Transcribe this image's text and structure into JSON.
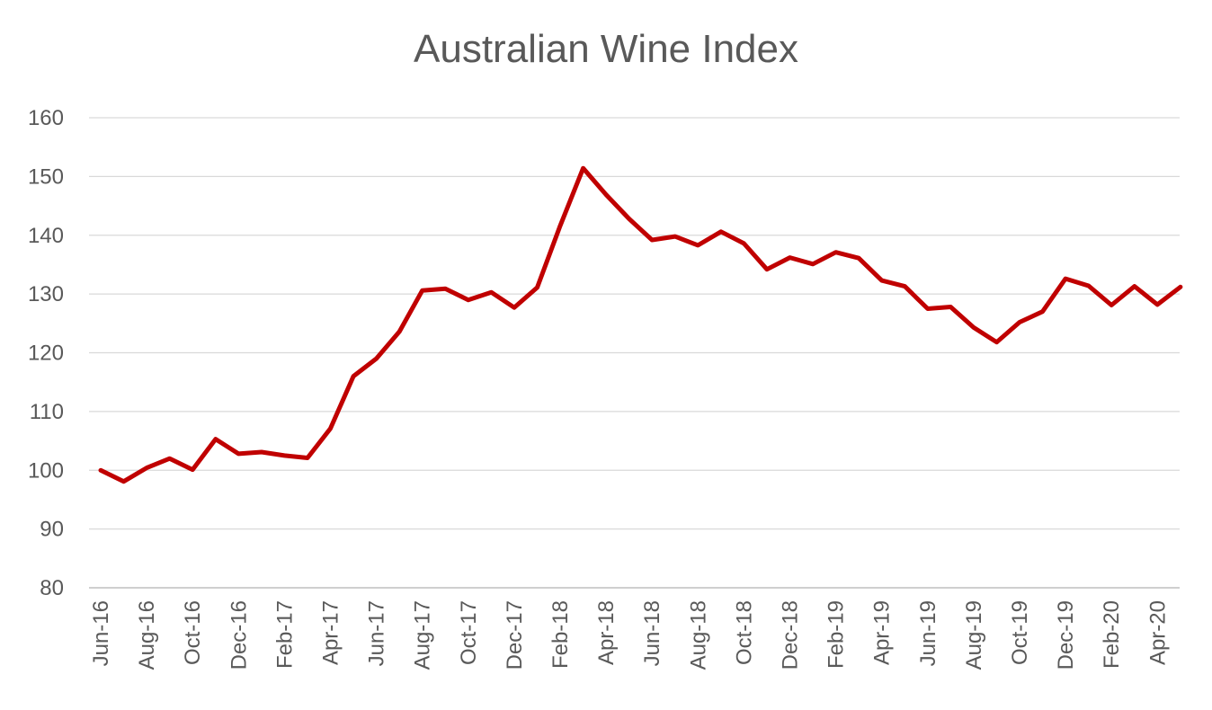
{
  "chart_data": {
    "type": "line",
    "title": "Australian Wine Index",
    "xlabel": "",
    "ylabel": "",
    "ylim": [
      80,
      160
    ],
    "yticks": [
      80,
      90,
      100,
      110,
      120,
      130,
      140,
      150,
      160
    ],
    "grid": true,
    "legend": "none",
    "x": [
      "Jun-16",
      "Jul-16",
      "Aug-16",
      "Sep-16",
      "Oct-16",
      "Nov-16",
      "Dec-16",
      "Jan-17",
      "Feb-17",
      "Mar-17",
      "Apr-17",
      "May-17",
      "Jun-17",
      "Jul-17",
      "Aug-17",
      "Sep-17",
      "Oct-17",
      "Nov-17",
      "Dec-17",
      "Jan-18",
      "Feb-18",
      "Mar-18",
      "Apr-18",
      "May-18",
      "Jun-18",
      "Jul-18",
      "Aug-18",
      "Sep-18",
      "Oct-18",
      "Nov-18",
      "Dec-18",
      "Jan-19",
      "Feb-19",
      "Mar-19",
      "Apr-19",
      "May-19",
      "Jun-19",
      "Jul-19",
      "Aug-19",
      "Sep-19",
      "Oct-19",
      "Nov-19",
      "Dec-19",
      "Jan-20",
      "Feb-20",
      "Mar-20",
      "Apr-20",
      "May-20"
    ],
    "xtick_labels": [
      "Jun-16",
      "Aug-16",
      "Oct-16",
      "Dec-16",
      "Feb-17",
      "Apr-17",
      "Jun-17",
      "Aug-17",
      "Oct-17",
      "Dec-17",
      "Feb-18",
      "Apr-18",
      "Jun-18",
      "Aug-18",
      "Oct-18",
      "Dec-18",
      "Feb-19",
      "Apr-19",
      "Jun-19",
      "Aug-19",
      "Oct-19",
      "Dec-19",
      "Feb-20",
      "Apr-20"
    ],
    "series": [
      {
        "color": "#c00000",
        "values": [
          100,
          98.1,
          100.4,
          102,
          100.1,
          105.3,
          102.8,
          103.1,
          102.5,
          102.1,
          107.1,
          116,
          119,
          123.6,
          130.6,
          130.9,
          129,
          130.3,
          127.7,
          131.1,
          141.6,
          151.4,
          146.9,
          142.8,
          139.2,
          139.8,
          138.3,
          140.6,
          138.6,
          134.2,
          136.2,
          135.1,
          137.1,
          136.1,
          132.3,
          131.3,
          127.5,
          127.8,
          124.3,
          121.8,
          125.2,
          127,
          132.6,
          131.4,
          128.1,
          131.3,
          128.2,
          131.2
        ]
      }
    ]
  }
}
